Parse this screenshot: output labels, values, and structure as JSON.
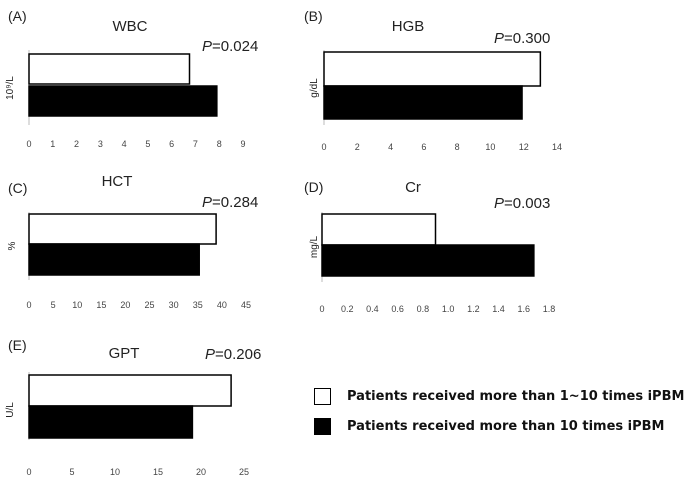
{
  "legend": {
    "items": [
      {
        "label": "Patients received more than 1~10 times iPBM",
        "color": "#ffffff"
      },
      {
        "label": "Patients received more than 10 times iPBM",
        "color": "#000000"
      }
    ]
  },
  "chart_data": [
    {
      "type": "bar",
      "orientation": "horizontal",
      "panel_label": "(A)",
      "title": "WBC",
      "ylabel": "10⁹/L",
      "p_prefix": "P",
      "p_value": "=0.024",
      "xlim": [
        0,
        9
      ],
      "ticks": [
        0,
        1,
        2,
        3,
        4,
        5,
        6,
        7,
        8,
        9
      ],
      "series": [
        {
          "legend_index": 0,
          "value": 6.75
        },
        {
          "legend_index": 1,
          "value": 7.9
        }
      ]
    },
    {
      "type": "bar",
      "orientation": "horizontal",
      "panel_label": "(B)",
      "title": "HGB",
      "ylabel": "g/dL",
      "p_prefix": "P",
      "p_value": "=0.300",
      "xlim": [
        0,
        14
      ],
      "ticks": [
        0,
        2,
        4,
        6,
        8,
        10,
        12,
        14
      ],
      "series": [
        {
          "legend_index": 0,
          "value": 13.0
        },
        {
          "legend_index": 1,
          "value": 11.9
        }
      ]
    },
    {
      "type": "bar",
      "orientation": "horizontal",
      "panel_label": "(C)",
      "title": "HCT",
      "ylabel": "%",
      "p_prefix": "P",
      "p_value": "=0.284",
      "xlim": [
        0,
        45
      ],
      "ticks": [
        0,
        5,
        10,
        15,
        20,
        25,
        30,
        35,
        40,
        45
      ],
      "series": [
        {
          "legend_index": 0,
          "value": 38.8
        },
        {
          "legend_index": 1,
          "value": 35.3
        }
      ]
    },
    {
      "type": "bar",
      "orientation": "horizontal",
      "panel_label": "(D)",
      "title": "Cr",
      "ylabel": "mg/L",
      "p_prefix": "P",
      "p_value": "=0.003",
      "xlim": [
        0,
        1.8
      ],
      "ticks": [
        "0",
        "0.2",
        "0.4",
        "0.6",
        "0.8",
        "1.0",
        "1.2",
        "1.4",
        "1.6",
        "1.8"
      ],
      "series": [
        {
          "legend_index": 0,
          "value": 0.9
        },
        {
          "legend_index": 1,
          "value": 1.68
        }
      ]
    },
    {
      "type": "bar",
      "orientation": "horizontal",
      "panel_label": "(E)",
      "title": "GPT",
      "ylabel": "U/L",
      "p_prefix": "P",
      "p_value": "=0.206",
      "xlim": [
        0,
        25
      ],
      "ticks": [
        0,
        5,
        10,
        15,
        20,
        25
      ],
      "series": [
        {
          "legend_index": 0,
          "value": 23.5
        },
        {
          "legend_index": 1,
          "value": 19.0
        }
      ]
    }
  ]
}
